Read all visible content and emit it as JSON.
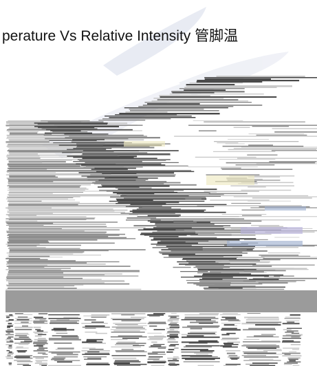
{
  "chart_data": {
    "type": "line",
    "title": "perature Vs Relative Intensity  管脚温",
    "xlabel": "",
    "ylabel": "",
    "series": [],
    "grid": true,
    "legend": "none"
  },
  "colors": {
    "background": "#ffffff",
    "watermark": "#e6e9f2",
    "stripe_dark": "#4a4a4a",
    "stripe_mid": "#8c8c8c",
    "stripe_light": "#c9c9c9",
    "tint_yellow": "#eeeac2",
    "tint_purple": "#b9b2dc",
    "tint_blue": "#9fb0cf",
    "band_gray": "#9b9b9b"
  }
}
